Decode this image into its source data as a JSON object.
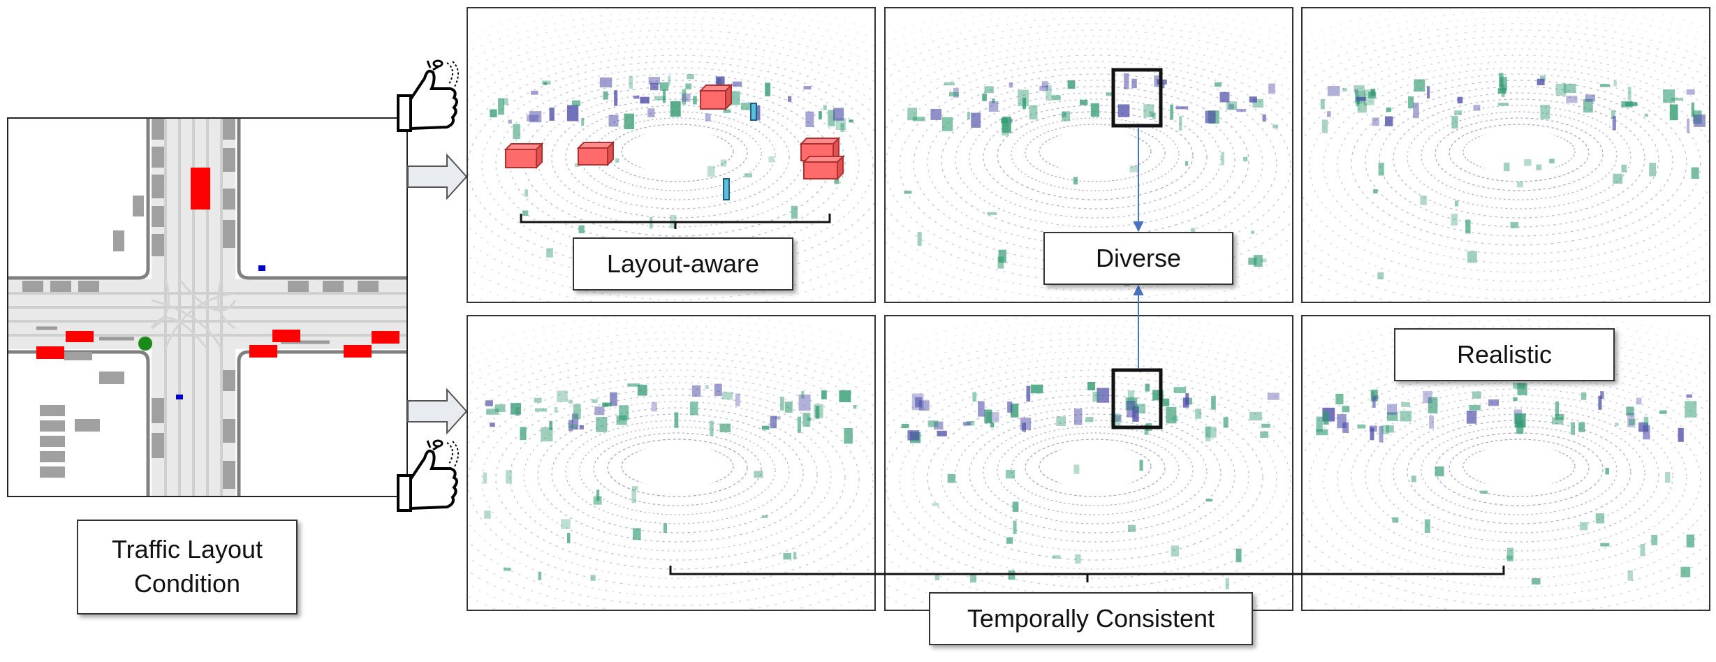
{
  "condition": {
    "line1": "Traffic Layout",
    "line2": "Condition"
  },
  "labels": {
    "layout_aware": "Layout-aware",
    "diverse": "Diverse",
    "realistic": "Realistic",
    "temporally_consistent": "Temporally Consistent"
  },
  "colors": {
    "vehicle_box": "#ff6b6b",
    "pedestrian_box": "#5bc0de",
    "map_vehicle": "#ff0000",
    "map_ego": "#1a8a1a",
    "map_pedestrian": "#0000cc",
    "points_near": "#4a4aa8",
    "points_far": "#2e9a6e",
    "link_arrow": "#4a72c4"
  },
  "icons": [
    "thumbs-up-icon",
    "arrow-right-icon"
  ]
}
